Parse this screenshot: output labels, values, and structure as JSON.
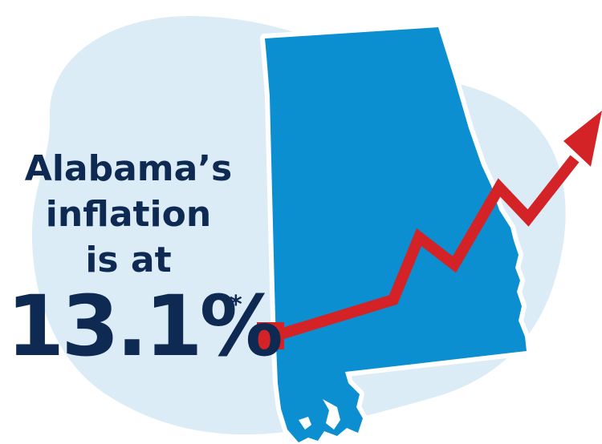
{
  "headline": {
    "line1": "Alabama’s",
    "line2": "inflation",
    "line3": "is at"
  },
  "stat": {
    "value": "13.1%",
    "footnote_marker": "*"
  },
  "colors": {
    "text": "#0e2a52",
    "state_fill": "#0b8fd1",
    "background_blob": "#dcecf7",
    "arrow": "#d42327"
  },
  "icons": {
    "map": "alabama-state-map-icon",
    "arrow": "rising-trend-arrow-icon"
  }
}
